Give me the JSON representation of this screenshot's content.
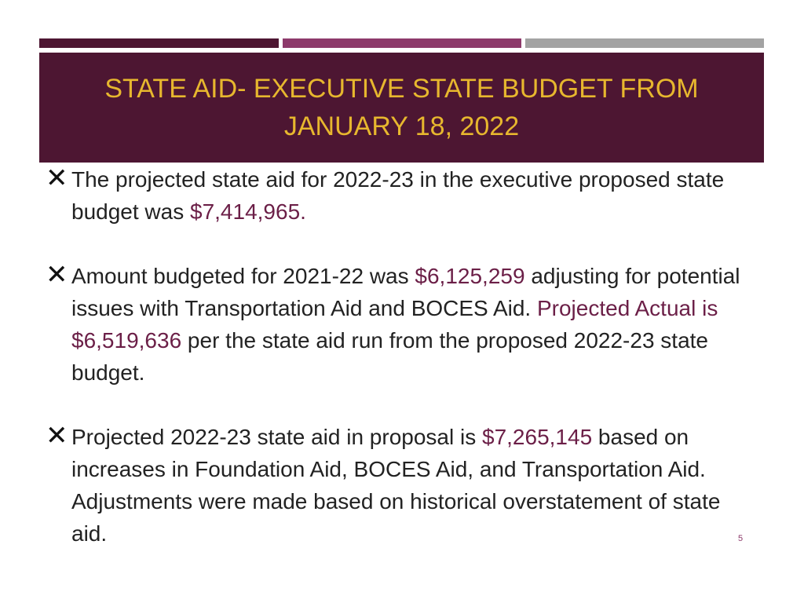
{
  "slide": {
    "title": "STATE AID- EXECUTIVE STATE BUDGET FROM JANUARY 18, 2022",
    "page_number": "5",
    "bullet_marker": "✕",
    "colors": {
      "title_bar": "#4d1632",
      "title_text": "#e7b72e",
      "highlight": "#6b1f47",
      "accent_1": "#4d1632",
      "accent_2": "#8d3a6b",
      "accent_3": "#a3a3a3"
    },
    "bullets": [
      {
        "pre": "The projected state aid for 2022-23 in the executive proposed state budget was ",
        "amount": "$7,414,965.",
        "post": ""
      },
      {
        "pre": "Amount budgeted for 2021-22 was ",
        "amount": "$6,125,259",
        "mid": " adjusting for potential issues with Transportation Aid and BOCES Aid. ",
        "mid_hl": "Projected Actual is ",
        "amount2": "$6,519,636",
        "post": " per the state aid run from the proposed 2022-23 state budget."
      },
      {
        "pre": "Projected 2022-23 state aid in proposal is ",
        "amount": "$7,265,145",
        "post": " based on increases in Foundation Aid, BOCES Aid, and Transportation Aid. Adjustments were made based on historical overstatement of state aid."
      }
    ]
  }
}
